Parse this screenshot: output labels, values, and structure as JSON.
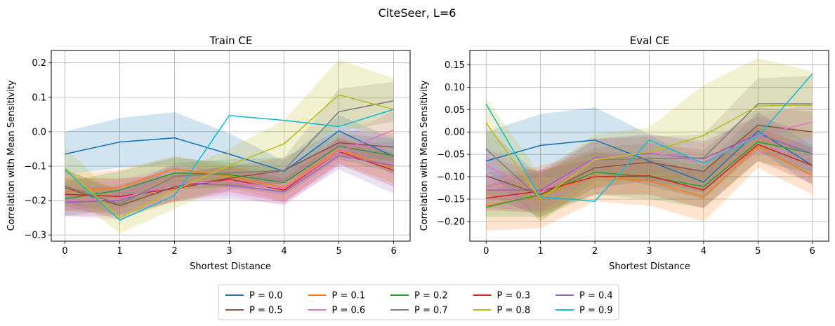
{
  "suptitle": "CiteSeer, L=6",
  "legend": {
    "placement": "bottom-center",
    "columns": 5
  },
  "colors": [
    "#1f77b4",
    "#ff7f0e",
    "#2ca02c",
    "#d62728",
    "#9467bd",
    "#8c564b",
    "#e377c2",
    "#7f7f7f",
    "#bcbd22",
    "#17becf"
  ],
  "series_names": [
    "P = 0.0",
    "P = 0.1",
    "P = 0.2",
    "P = 0.3",
    "P = 0.4",
    "P = 0.5",
    "P = 0.6",
    "P = 0.7",
    "P = 0.8",
    "P = 0.9"
  ],
  "chart_data": [
    {
      "type": "line",
      "title": "Train CE",
      "xlabel": "Shortest Distance",
      "ylabel": "Correlation with Mean Sensitivity",
      "x": [
        0,
        1,
        2,
        3,
        4,
        5,
        6
      ],
      "xlim": [
        -0.25,
        6.3
      ],
      "ylim": [
        -0.318,
        0.236
      ],
      "xticks": [
        0,
        1,
        2,
        3,
        4,
        5,
        6
      ],
      "yticks": [
        -0.3,
        -0.2,
        -0.1,
        0.0,
        0.1,
        0.2
      ],
      "ytick_labels": [
        "−0.3",
        "−0.2",
        "−0.1",
        "0.0",
        "0.1",
        "0.2"
      ],
      "grid": true,
      "series": [
        {
          "name": "P = 0.0",
          "values": [
            -0.065,
            -0.03,
            -0.018,
            -0.065,
            -0.115,
            0.002,
            -0.072
          ],
          "lower": [
            -0.125,
            -0.105,
            -0.095,
            -0.125,
            -0.145,
            -0.045,
            -0.125
          ],
          "upper": [
            0.0,
            0.04,
            0.057,
            -0.005,
            -0.085,
            0.048,
            -0.02
          ]
        },
        {
          "name": "P = 0.1",
          "values": [
            -0.175,
            -0.162,
            -0.108,
            -0.13,
            -0.162,
            -0.052,
            -0.105
          ],
          "lower": [
            -0.23,
            -0.215,
            -0.15,
            -0.16,
            -0.205,
            -0.09,
            -0.15
          ],
          "upper": [
            -0.125,
            -0.11,
            -0.07,
            -0.1,
            -0.12,
            -0.015,
            -0.06
          ]
        },
        {
          "name": "P = 0.2",
          "values": [
            -0.195,
            -0.17,
            -0.12,
            -0.125,
            -0.148,
            -0.042,
            -0.07
          ],
          "lower": [
            -0.245,
            -0.225,
            -0.165,
            -0.16,
            -0.185,
            -0.08,
            -0.12
          ],
          "upper": [
            -0.145,
            -0.115,
            -0.075,
            -0.09,
            -0.11,
            -0.005,
            -0.02
          ]
        },
        {
          "name": "P = 0.3",
          "values": [
            -0.182,
            -0.188,
            -0.165,
            -0.138,
            -0.17,
            -0.058,
            -0.112
          ],
          "lower": [
            -0.23,
            -0.24,
            -0.205,
            -0.175,
            -0.205,
            -0.095,
            -0.16
          ],
          "upper": [
            -0.135,
            -0.135,
            -0.125,
            -0.1,
            -0.135,
            -0.02,
            -0.065
          ]
        },
        {
          "name": "P = 0.4",
          "values": [
            -0.205,
            -0.2,
            -0.15,
            -0.155,
            -0.175,
            -0.07,
            -0.098
          ],
          "lower": [
            -0.245,
            -0.245,
            -0.2,
            -0.195,
            -0.21,
            -0.11,
            -0.18
          ],
          "upper": [
            -0.165,
            -0.155,
            -0.1,
            -0.115,
            -0.14,
            -0.03,
            -0.03
          ]
        },
        {
          "name": "P = 0.5",
          "values": [
            -0.162,
            -0.215,
            -0.16,
            -0.135,
            -0.112,
            -0.032,
            -0.045
          ],
          "lower": [
            -0.215,
            -0.255,
            -0.2,
            -0.17,
            -0.15,
            -0.07,
            -0.085
          ],
          "upper": [
            -0.11,
            -0.175,
            -0.12,
            -0.1,
            -0.075,
            0.005,
            -0.005
          ]
        },
        {
          "name": "P = 0.6",
          "values": [
            -0.2,
            -0.195,
            -0.15,
            -0.145,
            -0.165,
            -0.058,
            0.005
          ],
          "lower": [
            -0.245,
            -0.255,
            -0.2,
            -0.185,
            -0.215,
            -0.1,
            -0.04
          ],
          "upper": [
            -0.155,
            -0.14,
            -0.1,
            -0.11,
            -0.12,
            -0.015,
            0.06
          ]
        },
        {
          "name": "P = 0.7",
          "values": [
            -0.158,
            -0.21,
            -0.13,
            -0.12,
            -0.112,
            0.058,
            0.09
          ],
          "lower": [
            -0.205,
            -0.245,
            -0.17,
            -0.16,
            -0.15,
            0.0,
            0.03
          ],
          "upper": [
            -0.11,
            -0.17,
            -0.09,
            -0.08,
            -0.075,
            0.125,
            0.145
          ]
        },
        {
          "name": "P = 0.8",
          "values": [
            -0.105,
            -0.25,
            -0.17,
            -0.098,
            -0.035,
            0.107,
            0.065
          ],
          "lower": [
            -0.17,
            -0.295,
            -0.225,
            -0.15,
            -0.105,
            0.02,
            -0.02
          ],
          "upper": [
            -0.045,
            -0.2,
            -0.12,
            -0.05,
            0.035,
            0.21,
            0.155
          ]
        },
        {
          "name": "P = 0.9",
          "values": [
            -0.11,
            -0.257,
            -0.185,
            0.047,
            0.033,
            0.015,
            0.065
          ],
          "lower": [
            -0.11,
            -0.257,
            -0.185,
            0.047,
            0.033,
            0.015,
            0.065
          ],
          "upper": [
            -0.11,
            -0.257,
            -0.185,
            0.047,
            0.033,
            0.015,
            0.065
          ]
        }
      ]
    },
    {
      "type": "line",
      "title": "Eval CE",
      "xlabel": "Shortest Distance",
      "ylabel": "Correlation with Mean Sensitivity",
      "x": [
        0,
        1,
        2,
        3,
        4,
        5,
        6
      ],
      "xlim": [
        -0.3,
        6.3
      ],
      "ylim": [
        -0.244,
        0.182
      ],
      "xticks": [
        0,
        1,
        2,
        3,
        4,
        5,
        6
      ],
      "yticks": [
        -0.2,
        -0.15,
        -0.1,
        -0.05,
        0.0,
        0.05,
        0.1,
        0.15
      ],
      "ytick_labels": [
        "−0.20",
        "−0.15",
        "−0.10",
        "−0.05",
        "0.00",
        "0.05",
        "0.10",
        "0.15"
      ],
      "grid": true,
      "series": [
        {
          "name": "P = 0.0",
          "values": [
            -0.065,
            -0.03,
            -0.018,
            -0.065,
            -0.112,
            0.002,
            -0.075
          ],
          "lower": [
            -0.125,
            -0.1,
            -0.09,
            -0.12,
            -0.15,
            -0.04,
            -0.12
          ],
          "upper": [
            0.0,
            0.04,
            0.055,
            -0.005,
            -0.075,
            0.045,
            -0.03
          ]
        },
        {
          "name": "P = 0.1",
          "values": [
            -0.165,
            -0.142,
            -0.098,
            -0.11,
            -0.145,
            -0.032,
            -0.098
          ],
          "lower": [
            -0.22,
            -0.215,
            -0.155,
            -0.165,
            -0.2,
            -0.08,
            -0.14
          ],
          "upper": [
            -0.11,
            -0.075,
            -0.045,
            -0.06,
            -0.09,
            0.01,
            -0.055
          ]
        },
        {
          "name": "P = 0.2",
          "values": [
            -0.168,
            -0.14,
            -0.09,
            -0.1,
            -0.122,
            -0.022,
            -0.048
          ],
          "lower": [
            -0.19,
            -0.19,
            -0.14,
            -0.15,
            -0.17,
            -0.065,
            -0.095
          ],
          "upper": [
            -0.135,
            -0.09,
            -0.045,
            -0.055,
            -0.075,
            0.02,
            0.0
          ]
        },
        {
          "name": "P = 0.3",
          "values": [
            -0.148,
            -0.132,
            -0.1,
            -0.098,
            -0.13,
            -0.028,
            -0.075
          ],
          "lower": [
            -0.175,
            -0.18,
            -0.14,
            -0.14,
            -0.17,
            -0.065,
            -0.115
          ],
          "upper": [
            -0.12,
            -0.085,
            -0.06,
            -0.06,
            -0.09,
            0.01,
            -0.035
          ]
        },
        {
          "name": "P = 0.4",
          "values": [
            -0.13,
            -0.13,
            -0.058,
            -0.048,
            -0.06,
            -0.005,
            -0.048
          ],
          "lower": [
            -0.17,
            -0.175,
            -0.1,
            -0.09,
            -0.1,
            -0.045,
            -0.09
          ],
          "upper": [
            -0.09,
            -0.085,
            -0.015,
            -0.005,
            -0.02,
            0.035,
            -0.005
          ]
        },
        {
          "name": "P = 0.5",
          "values": [
            -0.098,
            -0.14,
            -0.08,
            -0.068,
            -0.088,
            0.015,
            0.0
          ],
          "lower": [
            -0.14,
            -0.19,
            -0.125,
            -0.11,
            -0.135,
            -0.025,
            -0.045
          ],
          "upper": [
            -0.055,
            -0.09,
            -0.035,
            -0.025,
            -0.04,
            0.055,
            0.045
          ]
        },
        {
          "name": "P = 0.6",
          "values": [
            -0.075,
            -0.135,
            -0.06,
            -0.045,
            -0.068,
            -0.008,
            0.022
          ],
          "lower": [
            -0.115,
            -0.18,
            -0.1,
            -0.085,
            -0.11,
            -0.05,
            -0.02
          ],
          "upper": [
            -0.035,
            -0.09,
            -0.02,
            -0.005,
            -0.025,
            0.035,
            0.065
          ]
        },
        {
          "name": "P = 0.7",
          "values": [
            -0.038,
            -0.15,
            -0.062,
            -0.06,
            -0.058,
            0.063,
            0.063
          ],
          "lower": [
            -0.085,
            -0.2,
            -0.11,
            -0.11,
            -0.11,
            0.005,
            0.0
          ],
          "upper": [
            0.01,
            -0.1,
            -0.015,
            -0.01,
            -0.005,
            0.12,
            0.125
          ]
        },
        {
          "name": "P = 0.8",
          "values": [
            0.02,
            -0.15,
            -0.062,
            -0.045,
            -0.008,
            0.058,
            0.06
          ],
          "lower": [
            -0.04,
            -0.2,
            -0.12,
            -0.1,
            -0.11,
            -0.045,
            -0.01
          ],
          "upper": [
            0.075,
            -0.095,
            -0.005,
            0.01,
            0.105,
            0.165,
            0.135
          ]
        },
        {
          "name": "P = 0.9",
          "values": [
            0.062,
            -0.145,
            -0.155,
            -0.018,
            -0.07,
            -0.01,
            0.13
          ],
          "lower": [
            0.062,
            -0.145,
            -0.155,
            -0.018,
            -0.07,
            -0.01,
            0.13
          ],
          "upper": [
            0.062,
            -0.145,
            -0.155,
            -0.018,
            -0.07,
            -0.01,
            0.13
          ]
        }
      ]
    }
  ]
}
